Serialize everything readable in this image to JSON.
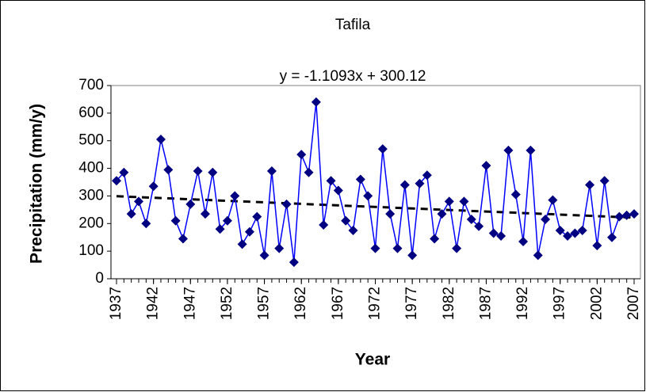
{
  "chart_data": {
    "type": "line",
    "title": "Tafila",
    "annotation": "y = -1.1093x + 300.12",
    "xlabel": "Year",
    "ylabel": "Precipitation (mm/y)",
    "x": [
      1937,
      1938,
      1939,
      1940,
      1941,
      1942,
      1943,
      1944,
      1945,
      1946,
      1947,
      1948,
      1949,
      1950,
      1951,
      1952,
      1953,
      1954,
      1955,
      1956,
      1957,
      1958,
      1959,
      1960,
      1961,
      1962,
      1963,
      1964,
      1965,
      1966,
      1967,
      1968,
      1969,
      1970,
      1971,
      1972,
      1973,
      1974,
      1975,
      1976,
      1977,
      1978,
      1979,
      1980,
      1981,
      1982,
      1983,
      1984,
      1985,
      1986,
      1987,
      1988,
      1989,
      1990,
      1991,
      1992,
      1993,
      1994,
      1995,
      1996,
      1997,
      1998,
      1999,
      2000,
      2001,
      2002,
      2003,
      2004,
      2005,
      2006,
      2007
    ],
    "series": [
      {
        "color": "#0000ff",
        "marker_color": "#000080",
        "values": [
          355,
          385,
          235,
          280,
          200,
          335,
          505,
          395,
          210,
          145,
          270,
          390,
          235,
          385,
          180,
          210,
          300,
          125,
          170,
          225,
          85,
          390,
          110,
          270,
          60,
          450,
          385,
          640,
          195,
          355,
          320,
          210,
          175,
          360,
          300,
          110,
          470,
          235,
          110,
          340,
          85,
          345,
          375,
          145,
          235,
          280,
          110,
          280,
          215,
          190,
          410,
          165,
          155,
          465,
          305,
          135,
          465,
          85,
          215,
          285,
          175,
          155,
          165,
          175,
          340,
          120,
          355,
          150,
          225,
          230,
          235
        ]
      }
    ],
    "trend": {
      "x": [
        1937,
        2007
      ],
      "values": [
        299,
        221.4
      ],
      "color": "#000000"
    },
    "xlim": [
      1937,
      2007
    ],
    "xticks": [
      1937,
      1942,
      1947,
      1952,
      1957,
      1962,
      1967,
      1972,
      1977,
      1982,
      1987,
      1992,
      1997,
      2002,
      2007
    ],
    "ylim": [
      0,
      700
    ],
    "yticks": [
      0,
      100,
      200,
      300,
      400,
      500,
      600,
      700
    ],
    "grid": false
  }
}
